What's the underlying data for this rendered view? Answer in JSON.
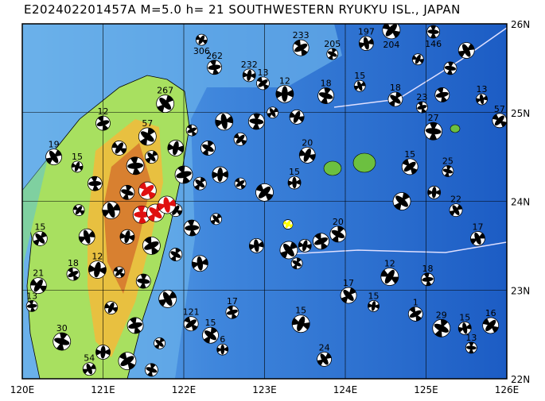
{
  "title": "E202402201457A M=5.0 h= 21 SOUTHWESTERN RYUKYU ISL., JAPAN",
  "map": {
    "lon_range": [
      120,
      126
    ],
    "lat_range": [
      22,
      26
    ],
    "lon_ticks": [
      "120E",
      "121E",
      "122E",
      "123E",
      "124E",
      "125E",
      "126E"
    ],
    "lat_ticks": [
      "22N",
      "23N",
      "24N",
      "25N",
      "26N"
    ],
    "colors": {
      "deep_ocean": "#1c5cc4",
      "mid_ocean": "#3f86dc",
      "shallow": "#7fc3ee",
      "land_low": "#a8e060",
      "land_mid": "#e8c040",
      "land_high": "#d88030",
      "highlight": "#e01010",
      "current": "#ffff00"
    }
  },
  "events": [
    {
      "lon": 122.22,
      "lat": 25.82,
      "depth": "306"
    },
    {
      "lon": 122.38,
      "lat": 25.51,
      "depth": "262"
    },
    {
      "lon": 121.77,
      "lat": 25.1,
      "depth": "267"
    },
    {
      "lon": 122.81,
      "lat": 25.42,
      "depth": "232"
    },
    {
      "lon": 123.45,
      "lat": 25.73,
      "depth": "233"
    },
    {
      "lon": 123.84,
      "lat": 25.66,
      "depth": "205"
    },
    {
      "lon": 124.26,
      "lat": 25.78,
      "depth": "197"
    },
    {
      "lon": 124.57,
      "lat": 25.93,
      "depth": "204"
    },
    {
      "lon": 125.09,
      "lat": 25.91,
      "depth": "146"
    },
    {
      "lon": 120.39,
      "lat": 24.5,
      "depth": "19"
    },
    {
      "lon": 120.68,
      "lat": 24.39,
      "depth": "15"
    },
    {
      "lon": 121.0,
      "lat": 24.88,
      "depth": "12"
    },
    {
      "lon": 121.55,
      "lat": 24.73,
      "depth": "57"
    },
    {
      "lon": 123.37,
      "lat": 24.21,
      "depth": "15"
    },
    {
      "lon": 124.8,
      "lat": 24.39,
      "depth": "15"
    },
    {
      "lon": 125.27,
      "lat": 24.34,
      "depth": "25"
    },
    {
      "lon": 125.64,
      "lat": 23.58,
      "depth": "17"
    },
    {
      "lon": 124.55,
      "lat": 23.15,
      "depth": "12"
    },
    {
      "lon": 125.02,
      "lat": 23.12,
      "depth": "18"
    },
    {
      "lon": 124.04,
      "lat": 22.94,
      "depth": "17"
    },
    {
      "lon": 124.35,
      "lat": 22.82,
      "depth": "15"
    },
    {
      "lon": 124.87,
      "lat": 22.73,
      "depth": "1"
    },
    {
      "lon": 125.19,
      "lat": 22.57,
      "depth": "29"
    },
    {
      "lon": 125.48,
      "lat": 22.57,
      "depth": "15"
    },
    {
      "lon": 125.8,
      "lat": 22.6,
      "depth": "16"
    },
    {
      "lon": 125.56,
      "lat": 22.35,
      "depth": "13"
    },
    {
      "lon": 123.74,
      "lat": 22.22,
      "depth": "24"
    },
    {
      "lon": 123.45,
      "lat": 22.62,
      "depth": "15"
    },
    {
      "lon": 122.6,
      "lat": 22.75,
      "depth": "17"
    },
    {
      "lon": 122.33,
      "lat": 22.49,
      "depth": "15"
    },
    {
      "lon": 122.48,
      "lat": 22.33,
      "depth": "6"
    },
    {
      "lon": 122.09,
      "lat": 22.62,
      "depth": "121"
    },
    {
      "lon": 120.49,
      "lat": 22.42,
      "depth": "30"
    },
    {
      "lon": 120.83,
      "lat": 22.11,
      "depth": "54"
    },
    {
      "lon": 120.2,
      "lat": 23.05,
      "depth": "21"
    },
    {
      "lon": 120.12,
      "lat": 22.82,
      "depth": "13"
    },
    {
      "lon": 120.22,
      "lat": 23.58,
      "depth": "15"
    },
    {
      "lon": 120.93,
      "lat": 23.23,
      "depth": "12"
    },
    {
      "lon": 120.63,
      "lat": 23.18,
      "depth": "18"
    },
    {
      "lon": 123.91,
      "lat": 23.63,
      "depth": "20"
    },
    {
      "lon": 125.69,
      "lat": 25.15,
      "depth": "13"
    },
    {
      "lon": 125.91,
      "lat": 24.91,
      "depth": "57"
    },
    {
      "lon": 125.09,
      "lat": 24.79,
      "depth": "27"
    },
    {
      "lon": 125.37,
      "lat": 23.9,
      "depth": "22"
    },
    {
      "lon": 123.53,
      "lat": 24.52,
      "depth": "20"
    },
    {
      "lon": 124.95,
      "lat": 25.06,
      "depth": "23"
    },
    {
      "lon": 124.62,
      "lat": 25.15,
      "depth": "18"
    },
    {
      "lon": 123.25,
      "lat": 25.21,
      "depth": "12"
    },
    {
      "lon": 122.98,
      "lat": 25.33,
      "depth": "13"
    },
    {
      "lon": 123.76,
      "lat": 25.19,
      "depth": "18"
    },
    {
      "lon": 124.18,
      "lat": 25.3,
      "depth": "15"
    },
    {
      "lon": 121.2,
      "lat": 24.6,
      "depth": ""
    },
    {
      "lon": 121.4,
      "lat": 24.4,
      "depth": ""
    },
    {
      "lon": 121.6,
      "lat": 24.5,
      "depth": ""
    },
    {
      "lon": 121.9,
      "lat": 24.6,
      "depth": ""
    },
    {
      "lon": 122.1,
      "lat": 24.8,
      "depth": ""
    },
    {
      "lon": 122.3,
      "lat": 24.6,
      "depth": ""
    },
    {
      "lon": 122.5,
      "lat": 24.9,
      "depth": ""
    },
    {
      "lon": 122.7,
      "lat": 24.7,
      "depth": ""
    },
    {
      "lon": 122.9,
      "lat": 24.9,
      "depth": ""
    },
    {
      "lon": 123.1,
      "lat": 25.0,
      "depth": ""
    },
    {
      "lon": 123.4,
      "lat": 24.95,
      "depth": ""
    },
    {
      "lon": 122.0,
      "lat": 24.3,
      "depth": ""
    },
    {
      "lon": 122.2,
      "lat": 24.2,
      "depth": ""
    },
    {
      "lon": 122.45,
      "lat": 24.3,
      "depth": ""
    },
    {
      "lon": 122.7,
      "lat": 24.2,
      "depth": ""
    },
    {
      "lon": 121.3,
      "lat": 24.1,
      "depth": ""
    },
    {
      "lon": 121.1,
      "lat": 23.9,
      "depth": ""
    },
    {
      "lon": 121.9,
      "lat": 23.9,
      "depth": ""
    },
    {
      "lon": 122.1,
      "lat": 23.7,
      "depth": ""
    },
    {
      "lon": 122.4,
      "lat": 23.8,
      "depth": ""
    },
    {
      "lon": 121.3,
      "lat": 23.6,
      "depth": ""
    },
    {
      "lon": 121.6,
      "lat": 23.5,
      "depth": ""
    },
    {
      "lon": 121.9,
      "lat": 23.4,
      "depth": ""
    },
    {
      "lon": 122.2,
      "lat": 23.3,
      "depth": ""
    },
    {
      "lon": 121.2,
      "lat": 23.2,
      "depth": ""
    },
    {
      "lon": 121.5,
      "lat": 23.1,
      "depth": ""
    },
    {
      "lon": 121.8,
      "lat": 22.9,
      "depth": ""
    },
    {
      "lon": 121.1,
      "lat": 22.8,
      "depth": ""
    },
    {
      "lon": 121.4,
      "lat": 22.6,
      "depth": ""
    },
    {
      "lon": 121.7,
      "lat": 22.4,
      "depth": ""
    },
    {
      "lon": 121.0,
      "lat": 22.3,
      "depth": ""
    },
    {
      "lon": 121.3,
      "lat": 22.2,
      "depth": ""
    },
    {
      "lon": 121.6,
      "lat": 22.1,
      "depth": ""
    },
    {
      "lon": 120.8,
      "lat": 23.6,
      "depth": ""
    },
    {
      "lon": 120.7,
      "lat": 23.9,
      "depth": ""
    },
    {
      "lon": 120.9,
      "lat": 24.2,
      "depth": ""
    },
    {
      "lon": 123.3,
      "lat": 23.45,
      "depth": ""
    },
    {
      "lon": 123.5,
      "lat": 23.5,
      "depth": ""
    },
    {
      "lon": 123.7,
      "lat": 23.55,
      "depth": ""
    },
    {
      "lon": 123.4,
      "lat": 23.3,
      "depth": ""
    },
    {
      "lon": 122.9,
      "lat": 23.5,
      "depth": ""
    },
    {
      "lon": 123.0,
      "lat": 24.1,
      "depth": ""
    },
    {
      "lon": 125.3,
      "lat": 25.5,
      "depth": ""
    },
    {
      "lon": 125.5,
      "lat": 25.7,
      "depth": ""
    },
    {
      "lon": 124.9,
      "lat": 25.6,
      "depth": ""
    },
    {
      "lon": 125.2,
      "lat": 25.2,
      "depth": ""
    },
    {
      "lon": 124.7,
      "lat": 24.0,
      "depth": ""
    },
    {
      "lon": 125.1,
      "lat": 24.1,
      "depth": ""
    }
  ],
  "highlight_events": [
    {
      "lon": 121.55,
      "lat": 24.12
    },
    {
      "lon": 121.48,
      "lat": 23.85
    },
    {
      "lon": 121.65,
      "lat": 23.87
    },
    {
      "lon": 121.79,
      "lat": 23.96
    }
  ],
  "current_event": {
    "lon": 123.29,
    "lat": 23.74
  }
}
